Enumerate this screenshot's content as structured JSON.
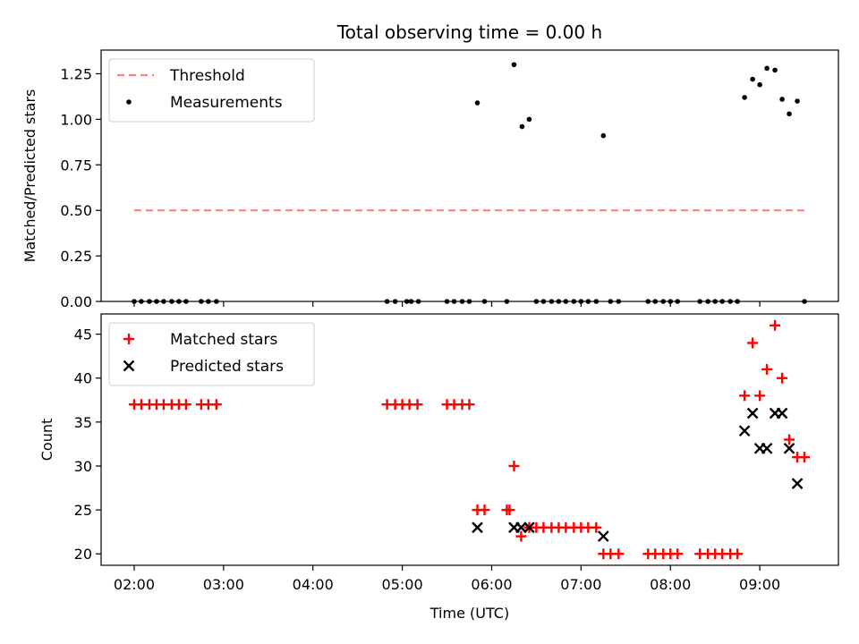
{
  "chart_data": [
    {
      "type": "scatter",
      "title": "Total observing time = 0.00 h",
      "xlabel": "",
      "ylabel": "Matched/Predicted stars",
      "xlim": [
        1.63,
        9.88
      ],
      "ylim": [
        0.0,
        1.38
      ],
      "yticks": [
        0.0,
        0.25,
        0.5,
        0.75,
        1.0,
        1.25
      ],
      "ytick_labels": [
        "0.00",
        "0.25",
        "0.50",
        "0.75",
        "1.00",
        "1.25"
      ],
      "legend_position": "top-left",
      "series": [
        {
          "name": "Threshold",
          "style": "dashed-line",
          "color": "#ff7f7f",
          "x": [
            2.0,
            9.5
          ],
          "y": [
            0.5,
            0.5
          ]
        },
        {
          "name": "Measurements",
          "style": "dot",
          "color": "#000000",
          "x": [
            2.0,
            2.08,
            2.17,
            2.25,
            2.33,
            2.42,
            2.5,
            2.58,
            2.75,
            2.83,
            2.92,
            4.83,
            4.92,
            5.05,
            5.1,
            5.18,
            5.5,
            5.58,
            5.67,
            5.75,
            5.84,
            5.92,
            6.17,
            6.25,
            6.34,
            6.42,
            6.5,
            6.58,
            6.67,
            6.75,
            6.83,
            6.92,
            7.0,
            7.08,
            7.17,
            7.25,
            7.33,
            7.42,
            7.75,
            7.83,
            7.92,
            8.0,
            8.08,
            8.33,
            8.42,
            8.5,
            8.58,
            8.67,
            8.75,
            8.83,
            8.92,
            9.0,
            9.08,
            9.17,
            9.25,
            9.33,
            9.42,
            9.5
          ],
          "y": [
            0.0,
            0.0,
            0.0,
            0.0,
            0.0,
            0.0,
            0.0,
            0.0,
            0.0,
            0.0,
            0.0,
            0.0,
            0.0,
            0.0,
            0.0,
            0.0,
            0.0,
            0.0,
            0.0,
            0.0,
            1.09,
            0.0,
            0.0,
            1.3,
            0.96,
            1.0,
            0.0,
            0.0,
            0.0,
            0.0,
            0.0,
            0.0,
            0.0,
            0.0,
            0.0,
            0.91,
            0.0,
            0.0,
            0.0,
            0.0,
            0.0,
            0.0,
            0.0,
            0.0,
            0.0,
            0.0,
            0.0,
            0.0,
            0.0,
            1.12,
            1.22,
            1.19,
            1.28,
            1.27,
            1.11,
            1.03,
            1.1,
            0.0
          ]
        }
      ]
    },
    {
      "type": "scatter",
      "title": "",
      "xlabel": "Time (UTC)",
      "ylabel": "Count",
      "xlim": [
        1.63,
        9.88
      ],
      "ylim": [
        18.7,
        47.3
      ],
      "xticks": [
        2,
        3,
        4,
        5,
        6,
        7,
        8,
        9
      ],
      "xtick_labels": [
        "02:00",
        "03:00",
        "04:00",
        "05:00",
        "06:00",
        "07:00",
        "08:00",
        "09:00"
      ],
      "yticks": [
        20,
        25,
        30,
        35,
        40,
        45
      ],
      "ytick_labels": [
        "20",
        "25",
        "30",
        "35",
        "40",
        "45"
      ],
      "legend_position": "top-left",
      "series": [
        {
          "name": "Matched stars",
          "style": "plus",
          "color": "#ff0000",
          "x": [
            2.0,
            2.08,
            2.17,
            2.25,
            2.33,
            2.42,
            2.5,
            2.58,
            2.75,
            2.83,
            2.92,
            4.83,
            4.92,
            5.0,
            5.08,
            5.17,
            5.5,
            5.58,
            5.67,
            5.75,
            5.84,
            5.92,
            6.17,
            6.2,
            6.25,
            6.33,
            6.42,
            6.5,
            6.58,
            6.67,
            6.75,
            6.83,
            6.92,
            7.0,
            7.08,
            7.17,
            7.25,
            7.33,
            7.42,
            7.75,
            7.83,
            7.92,
            8.0,
            8.08,
            8.33,
            8.42,
            8.5,
            8.58,
            8.67,
            8.75,
            8.83,
            8.92,
            9.0,
            9.08,
            9.17,
            9.25,
            9.33,
            9.42,
            9.5
          ],
          "y": [
            37,
            37,
            37,
            37,
            37,
            37,
            37,
            37,
            37,
            37,
            37,
            37,
            37,
            37,
            37,
            37,
            37,
            37,
            37,
            37,
            25,
            25,
            25,
            25,
            30,
            22,
            23,
            23,
            23,
            23,
            23,
            23,
            23,
            23,
            23,
            23,
            20,
            20,
            20,
            20,
            20,
            20,
            20,
            20,
            20,
            20,
            20,
            20,
            20,
            20,
            38,
            44,
            38,
            41,
            46,
            40,
            33,
            31,
            31
          ]
        },
        {
          "name": "Predicted stars",
          "style": "x",
          "color": "#000000",
          "x": [
            5.84,
            6.25,
            6.33,
            6.42,
            7.25,
            8.83,
            8.92,
            9.0,
            9.08,
            9.17,
            9.25,
            9.33,
            9.42
          ],
          "y": [
            23,
            23,
            23,
            23,
            22,
            34,
            36,
            32,
            32,
            36,
            36,
            32,
            28
          ]
        }
      ]
    }
  ]
}
